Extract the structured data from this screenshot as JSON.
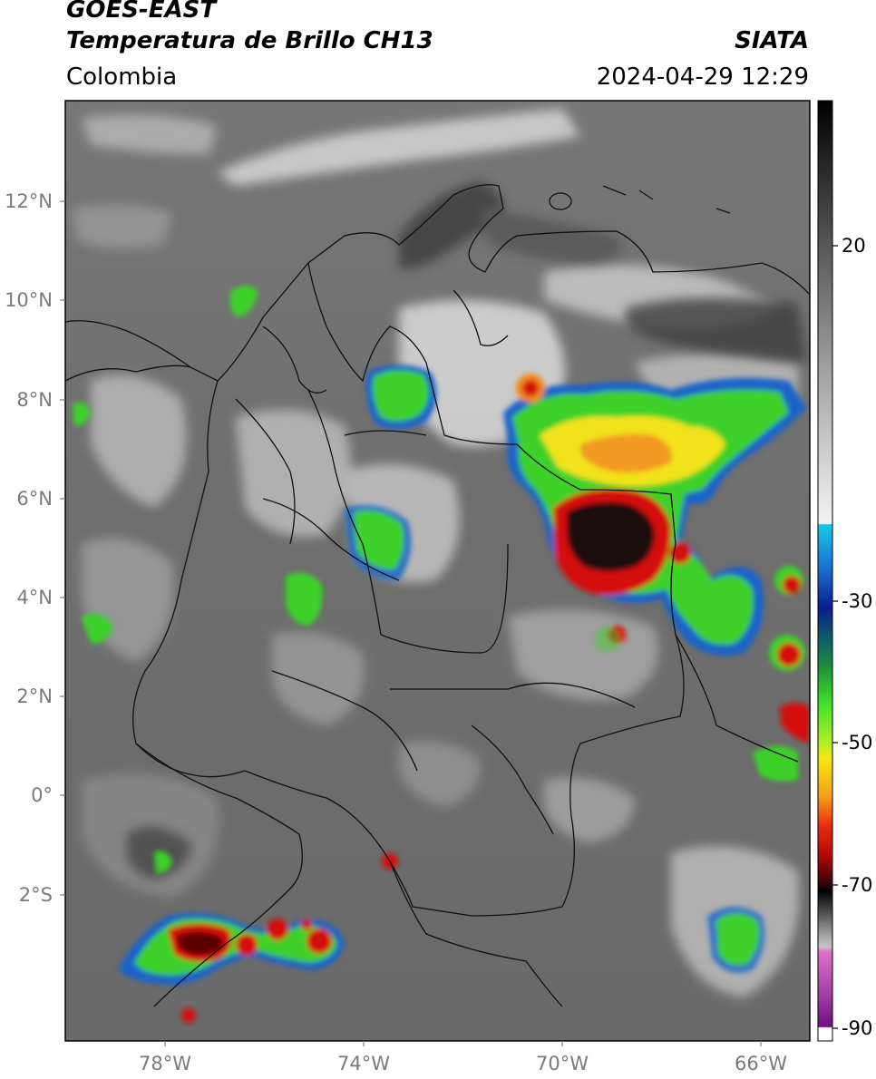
{
  "header": {
    "satellite": "GOES-EAST",
    "product": "Temperatura de Brillo CH13",
    "region": "Colombia",
    "brand": "SIATA",
    "timestamp": "2024-04-29 12:29"
  },
  "axes": {
    "lat_ticks": [
      "12°N",
      "10°N",
      "8°N",
      "6°N",
      "4°N",
      "2°N",
      "0°",
      "2°S"
    ],
    "lon_ticks": [
      "78°W",
      "74°W",
      "70°W",
      "66°W"
    ]
  },
  "colorbar": {
    "ticks": [
      "20",
      "-30",
      "-50",
      "-70",
      "-90"
    ]
  },
  "colors": {
    "cold_core": "#1a0a0a",
    "red": "#d11212",
    "orange": "#f08a1c",
    "yellow": "#f5e60e",
    "green": "#3cc82a",
    "cyan": "#19c2e6",
    "blue": "#1f5fb8"
  }
}
